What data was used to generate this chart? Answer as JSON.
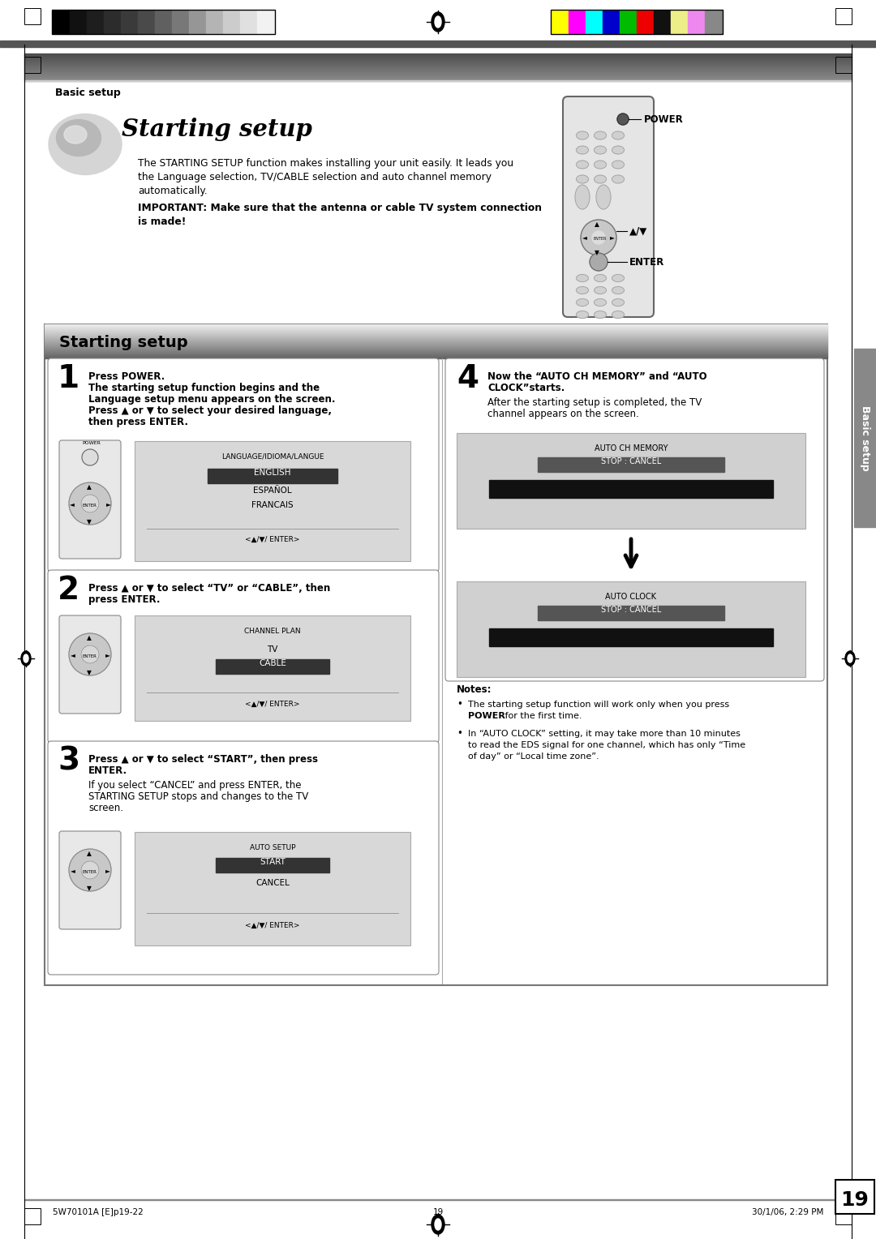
{
  "page_bg": "#ffffff",
  "header_bar_colors_left": [
    "#000000",
    "#111111",
    "#1e1e1e",
    "#2c2c2c",
    "#3a3a3a",
    "#4a4a4a",
    "#606060",
    "#787878",
    "#969696",
    "#b4b4b4",
    "#cccccc",
    "#e0e0e0",
    "#f2f2f2"
  ],
  "header_bar_colors_right": [
    "#ffff00",
    "#ff00ff",
    "#00ffff",
    "#0000cc",
    "#00bb00",
    "#ee0000",
    "#111111",
    "#eeee88",
    "#ee88ee",
    "#888888"
  ],
  "section_label": "Basic setup",
  "title_text": "Starting setup",
  "intro_text1": "The STARTING SETUP function makes installing your unit easily. It leads you",
  "intro_text2": "the Language selection, TV/CABLE selection and auto channel memory",
  "intro_text3": "automatically.",
  "important_text1": "IMPORTANT: Make sure that the antenna or cable TV system connection",
  "important_text2": "is made!",
  "box_title": "Starting setup",
  "step1_head": "Press POWER.",
  "step1_line1": "The starting setup function begins and the",
  "step1_line2": "Language setup menu appears on the screen.",
  "step1_line3": "Press ▲ or ▼ to select your desired language,",
  "step1_line4": "then press ENTER.",
  "step2_head1": "Press ▲ or ▼ to select “TV” or “CABLE”, then",
  "step2_head2": "press ENTER.",
  "step3_head1": "Press ▲ or ▼ to select “START”, then press",
  "step3_head2": "ENTER.",
  "step3_body1": "If you select “CANCEL” and press ENTER, the",
  "step3_body2": "STARTING SETUP stops and changes to the TV",
  "step3_body3": "screen.",
  "step4_head1": "Now the “AUTO CH MEMORY” and “AUTO",
  "step4_head2": "CLOCK”starts.",
  "step4_body1": "After the starting setup is completed, the TV",
  "step4_body2": "channel appears on the screen.",
  "notes_title": "Notes:",
  "note1a": "The starting setup function will work only when you press",
  "note1b_bold": "POWER",
  "note1b_rest": " for the first time.",
  "note2a": "In “AUTO CLOCK” setting, it may take more than 10 minutes",
  "note2b": "to read the EDS signal for one channel, which has only “Time",
  "note2c": "of day” or “Local time zone”.",
  "sidebar_text": "Basic setup",
  "page_number": "19",
  "footer_left": "5W70101A [E]p19-22",
  "footer_center": "19",
  "footer_right": "30/1/06, 2:29 PM",
  "power_label": "POWER",
  "enter_label": "ENTER",
  "updown_label": "▲/▼"
}
